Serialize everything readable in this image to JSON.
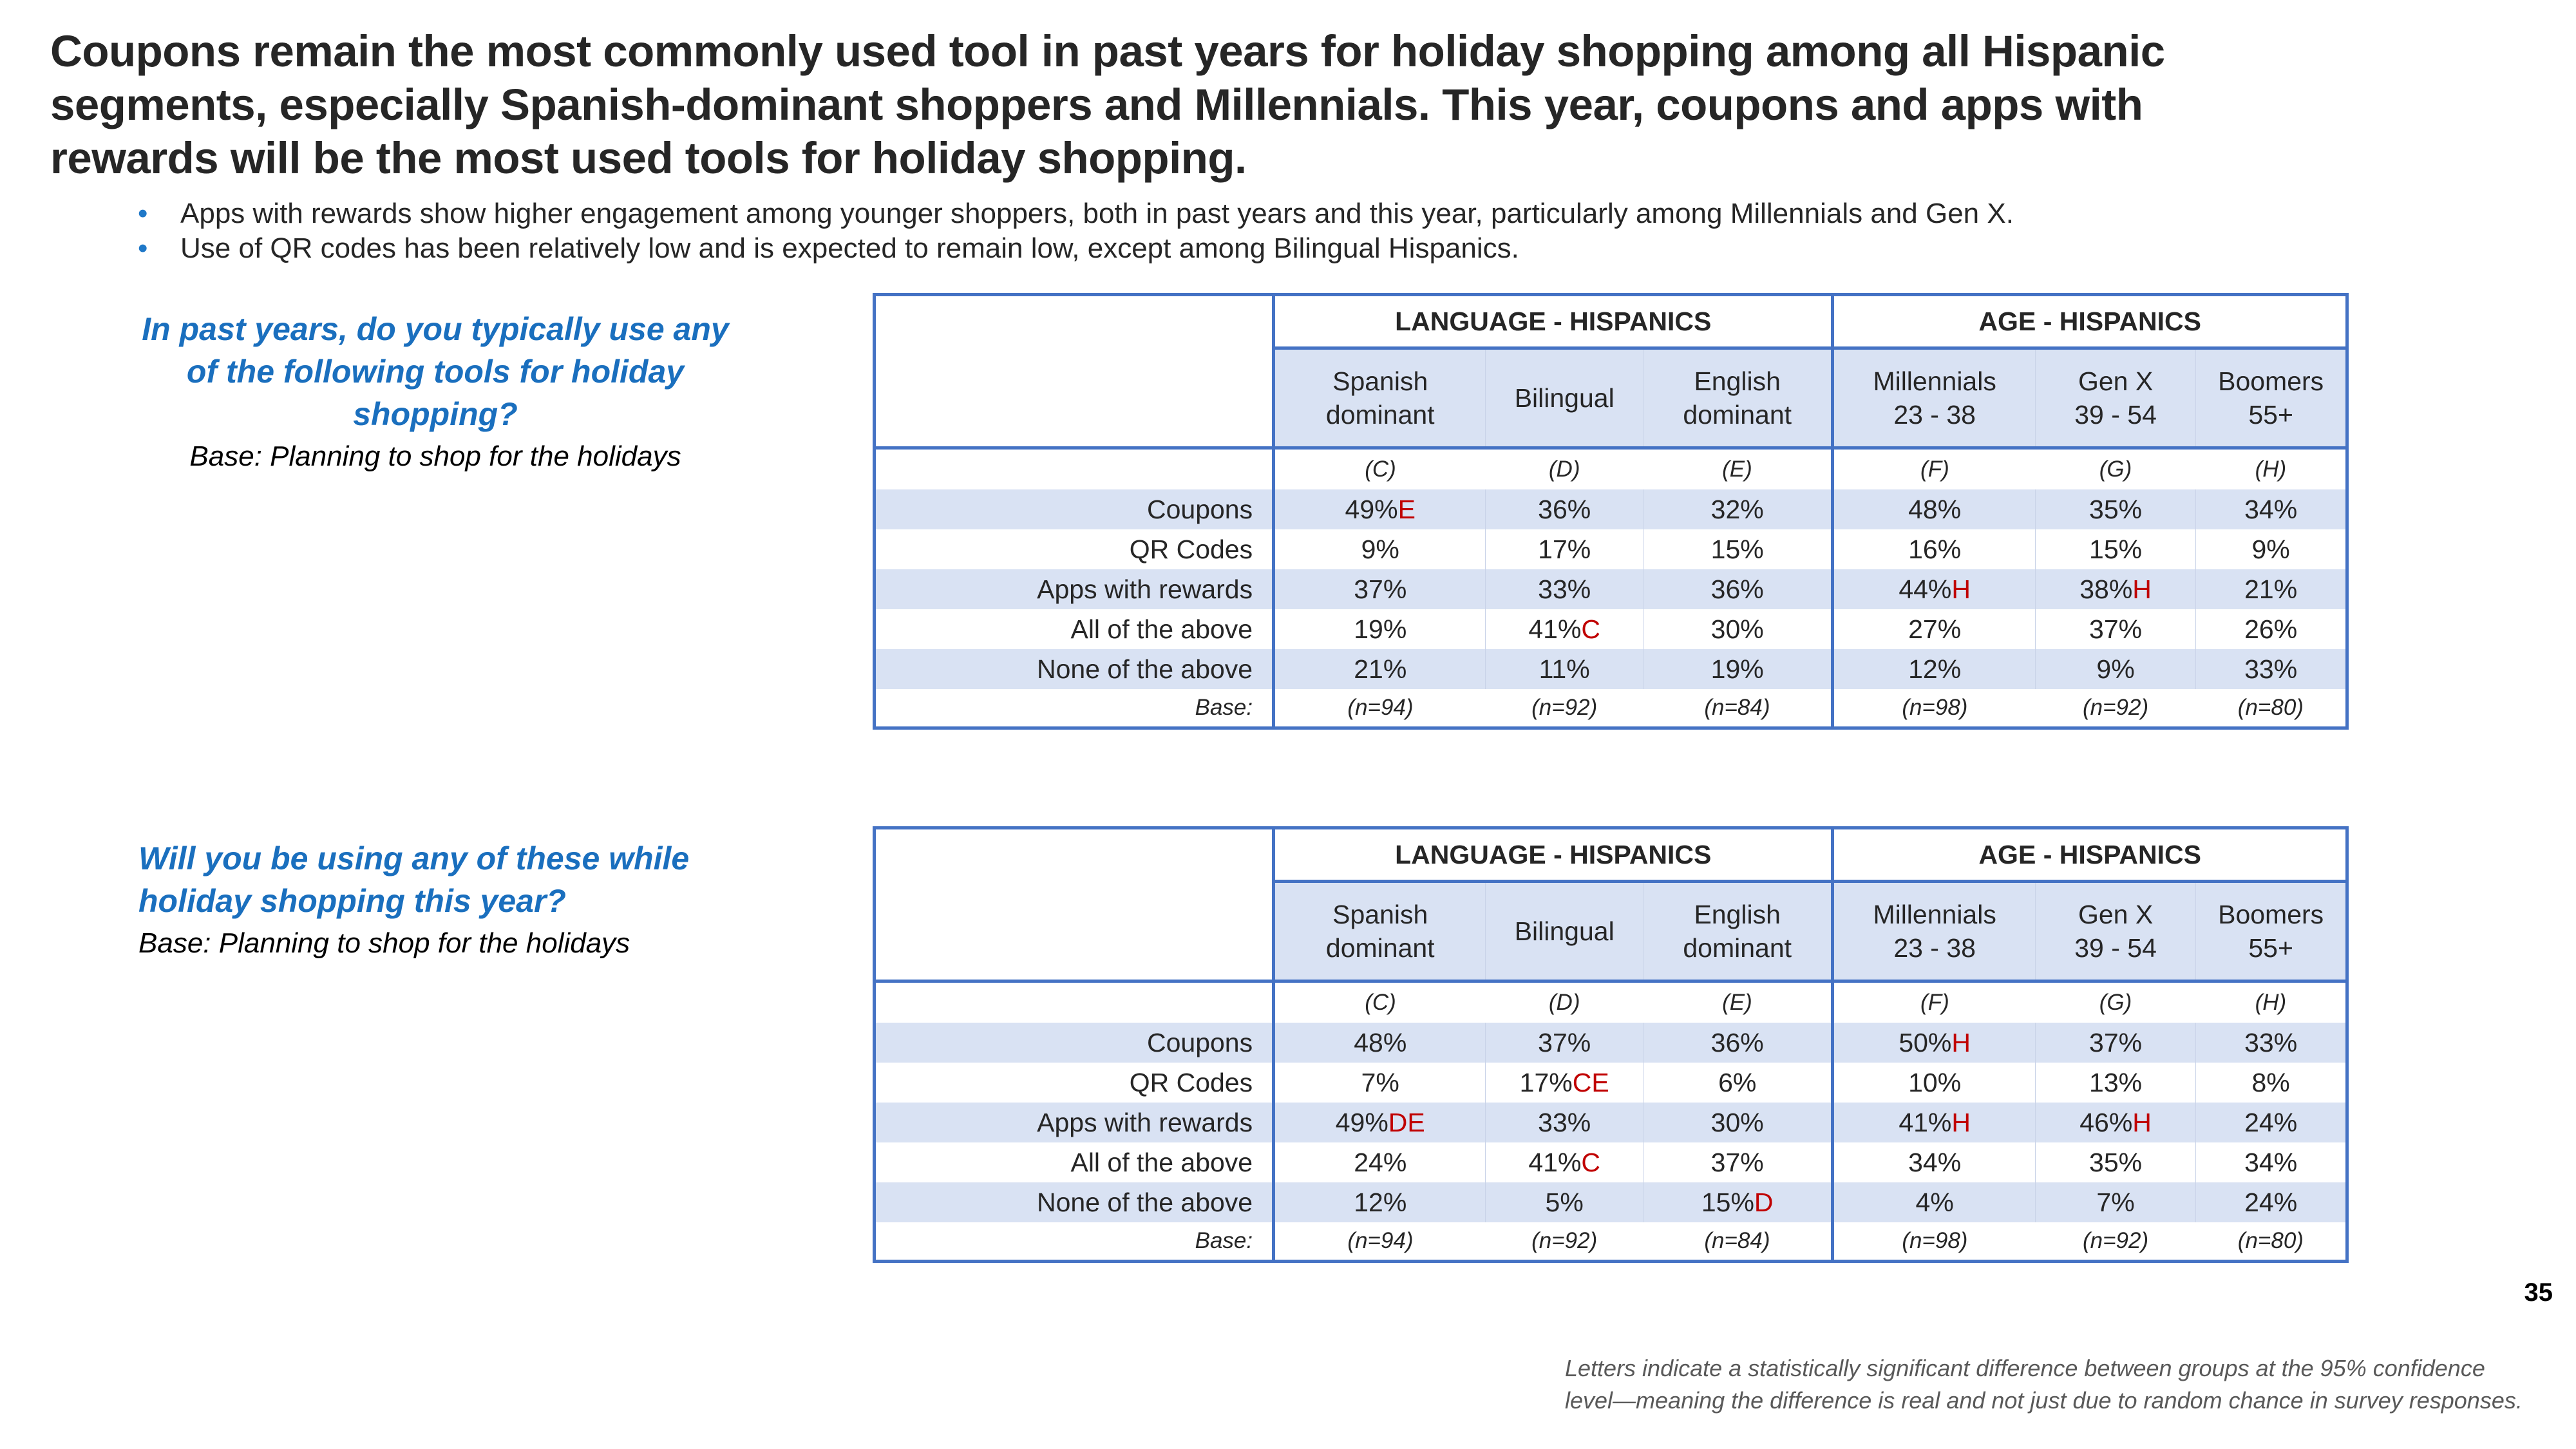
{
  "title": "Coupons remain the most commonly used tool in past years for holiday shopping among all Hispanic segments, especially Spanish-dominant shoppers and Millennials. This year, coupons and apps with rewards will be the most used tools for holiday shopping.",
  "bullets": [
    "Apps with rewards show higher engagement among younger shoppers, both in past years and this year, particularly among Millennials and Gen X.",
    "Use of QR codes has been relatively low and is expected to remain low, except among Bilingual Hispanics."
  ],
  "colors": {
    "accent_blue": "#1a6fbe",
    "table_border": "#4472c4",
    "shade": "#d9e2f3",
    "significance_red": "#c00000"
  },
  "groups": [
    "LANGUAGE - HISPANICS",
    "AGE - HISPANICS"
  ],
  "columns": [
    {
      "line1": "Spanish",
      "line2": "dominant",
      "letter": "(C)"
    },
    {
      "line1": "Bilingual",
      "line2": "",
      "letter": "(D)"
    },
    {
      "line1": "English",
      "line2": "dominant",
      "letter": "(E)"
    },
    {
      "line1": "Millennials",
      "line2": "23 - 38",
      "letter": "(F)"
    },
    {
      "line1": "Gen X",
      "line2": "39 - 54",
      "letter": "(G)"
    },
    {
      "line1": "Boomers",
      "line2": "55+",
      "letter": "(H)"
    }
  ],
  "base_label": "Base:",
  "bases": [
    "(n=94)",
    "(n=92)",
    "(n=84)",
    "(n=98)",
    "(n=92)",
    "(n=80)"
  ],
  "tables": [
    {
      "question": "In past years, do you typically use any of the following tools for holiday shopping?",
      "base_text": "Base: Planning to shop for the holidays",
      "rows": [
        {
          "label": "Coupons",
          "cells": [
            {
              "v": "49%",
              "s": "E"
            },
            {
              "v": "36%",
              "s": ""
            },
            {
              "v": "32%",
              "s": ""
            },
            {
              "v": "48%",
              "s": ""
            },
            {
              "v": "35%",
              "s": ""
            },
            {
              "v": "34%",
              "s": ""
            }
          ]
        },
        {
          "label": "QR Codes",
          "cells": [
            {
              "v": "9%",
              "s": ""
            },
            {
              "v": "17%",
              "s": ""
            },
            {
              "v": "15%",
              "s": ""
            },
            {
              "v": "16%",
              "s": ""
            },
            {
              "v": "15%",
              "s": ""
            },
            {
              "v": "9%",
              "s": ""
            }
          ]
        },
        {
          "label": "Apps with rewards",
          "cells": [
            {
              "v": "37%",
              "s": ""
            },
            {
              "v": "33%",
              "s": ""
            },
            {
              "v": "36%",
              "s": ""
            },
            {
              "v": "44%",
              "s": "H"
            },
            {
              "v": "38%",
              "s": "H"
            },
            {
              "v": "21%",
              "s": ""
            }
          ]
        },
        {
          "label": "All of the above",
          "cells": [
            {
              "v": "19%",
              "s": ""
            },
            {
              "v": "41%",
              "s": "C"
            },
            {
              "v": "30%",
              "s": ""
            },
            {
              "v": "27%",
              "s": ""
            },
            {
              "v": "37%",
              "s": ""
            },
            {
              "v": "26%",
              "s": ""
            }
          ]
        },
        {
          "label": "None of the above",
          "cells": [
            {
              "v": "21%",
              "s": ""
            },
            {
              "v": "11%",
              "s": ""
            },
            {
              "v": "19%",
              "s": ""
            },
            {
              "v": "12%",
              "s": ""
            },
            {
              "v": "9%",
              "s": ""
            },
            {
              "v": "33%",
              "s": ""
            }
          ]
        }
      ]
    },
    {
      "question": "Will you be using any of these while holiday shopping this year?",
      "base_text": "Base: Planning to shop for the holidays",
      "rows": [
        {
          "label": "Coupons",
          "cells": [
            {
              "v": "48%",
              "s": ""
            },
            {
              "v": "37%",
              "s": ""
            },
            {
              "v": "36%",
              "s": ""
            },
            {
              "v": "50%",
              "s": "H"
            },
            {
              "v": "37%",
              "s": ""
            },
            {
              "v": "33%",
              "s": ""
            }
          ]
        },
        {
          "label": "QR Codes",
          "cells": [
            {
              "v": "7%",
              "s": ""
            },
            {
              "v": "17%",
              "s": "CE"
            },
            {
              "v": "6%",
              "s": ""
            },
            {
              "v": "10%",
              "s": ""
            },
            {
              "v": "13%",
              "s": ""
            },
            {
              "v": "8%",
              "s": ""
            }
          ]
        },
        {
          "label": "Apps with rewards",
          "cells": [
            {
              "v": "49%",
              "s": "DE"
            },
            {
              "v": "33%",
              "s": ""
            },
            {
              "v": "30%",
              "s": ""
            },
            {
              "v": "41%",
              "s": "H"
            },
            {
              "v": "46%",
              "s": "H"
            },
            {
              "v": "24%",
              "s": ""
            }
          ]
        },
        {
          "label": "All of the above",
          "cells": [
            {
              "v": "24%",
              "s": ""
            },
            {
              "v": "41%",
              "s": "C"
            },
            {
              "v": "37%",
              "s": ""
            },
            {
              "v": "34%",
              "s": ""
            },
            {
              "v": "35%",
              "s": ""
            },
            {
              "v": "34%",
              "s": ""
            }
          ]
        },
        {
          "label": "None of the above",
          "cells": [
            {
              "v": "12%",
              "s": ""
            },
            {
              "v": "5%",
              "s": ""
            },
            {
              "v": "15%",
              "s": "D"
            },
            {
              "v": "4%",
              "s": ""
            },
            {
              "v": "7%",
              "s": ""
            },
            {
              "v": "24%",
              "s": ""
            }
          ]
        }
      ]
    }
  ],
  "page_number": "35",
  "footnote": "Letters indicate a statistically significant difference between groups at the 95% confidence level—meaning the difference is real and not just due to random chance in survey responses."
}
